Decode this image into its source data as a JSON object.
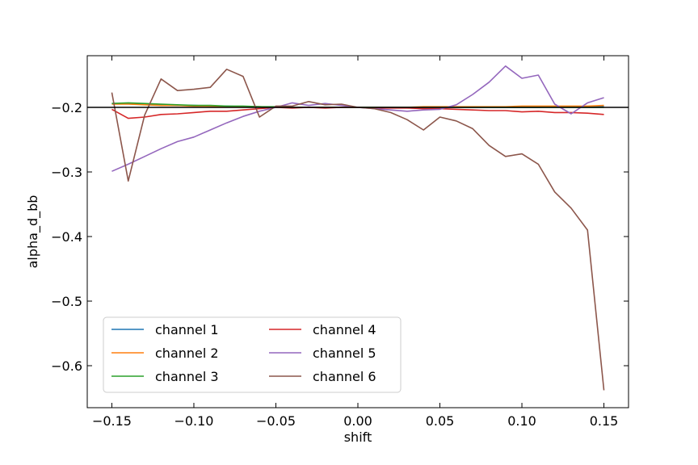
{
  "chart_data": {
    "type": "line",
    "title": "",
    "xlabel": "shift",
    "ylabel": "alpha_d_bb",
    "xlim": [
      -0.165,
      0.165
    ],
    "ylim": [
      -0.665,
      -0.12
    ],
    "grid": false,
    "legend_position": "lower-left",
    "legend_columns": 2,
    "x_ticks": [
      -0.15,
      -0.1,
      -0.05,
      0.0,
      0.05,
      0.1,
      0.15
    ],
    "x_tick_labels": [
      "−0.15",
      "−0.10",
      "−0.05",
      "0.00",
      "0.05",
      "0.10",
      "0.15"
    ],
    "y_ticks": [
      -0.2,
      -0.3,
      -0.4,
      -0.5,
      -0.6
    ],
    "y_tick_labels": [
      "−0.2",
      "−0.3",
      "−0.4",
      "−0.5",
      "−0.6"
    ],
    "reference_line": {
      "y": -0.2,
      "color": "#000000"
    },
    "x": [
      -0.15,
      -0.14,
      -0.13,
      -0.12,
      -0.11,
      -0.1,
      -0.09,
      -0.08,
      -0.07,
      -0.06,
      -0.05,
      -0.04,
      -0.03,
      -0.02,
      -0.01,
      0.0,
      0.01,
      0.02,
      0.03,
      0.04,
      0.05,
      0.06,
      0.07,
      0.08,
      0.09,
      0.1,
      0.11,
      0.12,
      0.13,
      0.14,
      0.15
    ],
    "series": [
      {
        "name": "channel 1",
        "color": "#1f77b4",
        "values": [
          -0.194,
          -0.194,
          -0.195,
          -0.196,
          -0.197,
          -0.197,
          -0.198,
          -0.198,
          -0.199,
          -0.199,
          -0.2,
          -0.2,
          -0.2,
          -0.2,
          -0.2,
          -0.2,
          -0.2,
          -0.2,
          -0.2,
          -0.2,
          -0.2,
          -0.2,
          -0.2,
          -0.2,
          -0.2,
          -0.2,
          -0.2,
          -0.199,
          -0.199,
          -0.199,
          -0.198
        ]
      },
      {
        "name": "channel 2",
        "color": "#ff7f0e",
        "values": [
          -0.195,
          -0.195,
          -0.196,
          -0.197,
          -0.197,
          -0.198,
          -0.198,
          -0.199,
          -0.199,
          -0.199,
          -0.2,
          -0.2,
          -0.2,
          -0.2,
          -0.2,
          -0.2,
          -0.2,
          -0.2,
          -0.2,
          -0.199,
          -0.199,
          -0.199,
          -0.199,
          -0.199,
          -0.199,
          -0.198,
          -0.198,
          -0.198,
          -0.198,
          -0.198,
          -0.197
        ]
      },
      {
        "name": "channel 3",
        "color": "#2ca02c",
        "values": [
          -0.194,
          -0.193,
          -0.194,
          -0.195,
          -0.196,
          -0.197,
          -0.197,
          -0.198,
          -0.198,
          -0.199,
          -0.199,
          -0.2,
          -0.2,
          -0.2,
          -0.2,
          -0.2,
          -0.2,
          -0.2,
          -0.2,
          -0.2,
          -0.2,
          -0.2,
          -0.2,
          -0.2,
          -0.2,
          -0.2,
          -0.2,
          -0.2,
          -0.2,
          -0.2,
          -0.2
        ]
      },
      {
        "name": "channel 4",
        "color": "#d62728",
        "values": [
          -0.203,
          -0.217,
          -0.215,
          -0.211,
          -0.21,
          -0.208,
          -0.206,
          -0.206,
          -0.204,
          -0.202,
          -0.2,
          -0.201,
          -0.2,
          -0.201,
          -0.2,
          -0.2,
          -0.201,
          -0.201,
          -0.201,
          -0.202,
          -0.202,
          -0.203,
          -0.204,
          -0.205,
          -0.205,
          -0.207,
          -0.206,
          -0.208,
          -0.208,
          -0.209,
          -0.211
        ]
      },
      {
        "name": "channel 5",
        "color": "#9467bd",
        "values": [
          -0.299,
          -0.288,
          -0.276,
          -0.264,
          -0.253,
          -0.246,
          -0.235,
          -0.224,
          -0.214,
          -0.206,
          -0.2,
          -0.193,
          -0.197,
          -0.194,
          -0.197,
          -0.2,
          -0.202,
          -0.204,
          -0.206,
          -0.204,
          -0.203,
          -0.196,
          -0.18,
          -0.161,
          -0.136,
          -0.155,
          -0.15,
          -0.195,
          -0.21,
          -0.193,
          -0.185
        ]
      },
      {
        "name": "channel 6",
        "color": "#8c564b",
        "values": [
          -0.177,
          -0.314,
          -0.212,
          -0.156,
          -0.174,
          -0.172,
          -0.169,
          -0.141,
          -0.152,
          -0.215,
          -0.198,
          -0.198,
          -0.191,
          -0.196,
          -0.195,
          -0.2,
          -0.202,
          -0.208,
          -0.219,
          -0.235,
          -0.215,
          -0.221,
          -0.233,
          -0.259,
          -0.276,
          -0.272,
          -0.288,
          -0.331,
          -0.356,
          -0.39,
          -0.638
        ]
      }
    ]
  }
}
